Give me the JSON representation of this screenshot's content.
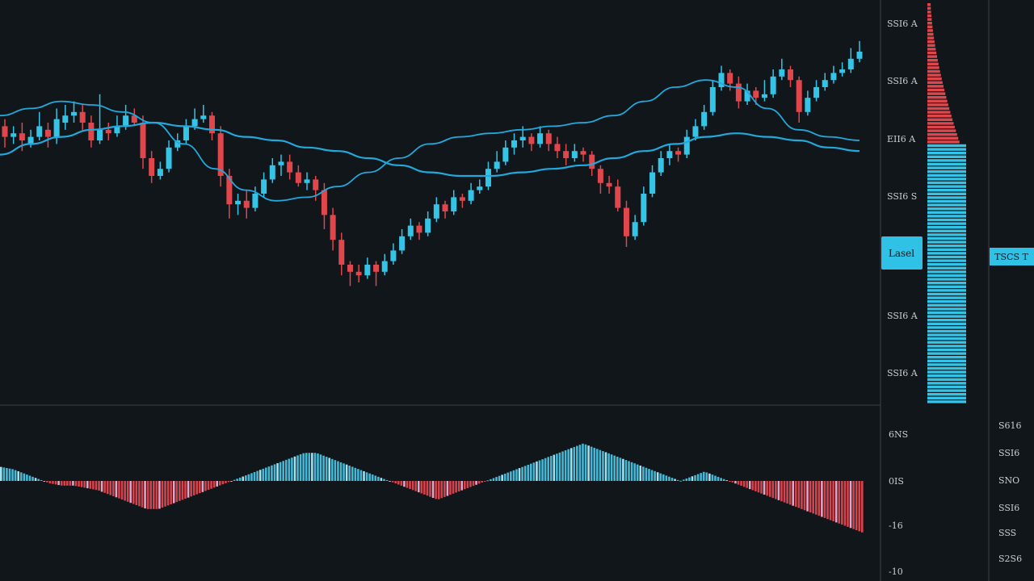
{
  "theme": {
    "background": "#11161b",
    "divider": "#3a4149",
    "bull_color": "#35c3e6",
    "bear_color": "#e0474c",
    "ma_color": "#23a8dc",
    "osc_pos_color": "#45b8d6",
    "osc_neg_color": "#d6434d",
    "osc_neg_light_color": "#e6a3c2",
    "label_color": "#c8ced4",
    "highlight_color": "#2fc1e6",
    "highlight_text_color": "#0b1a20"
  },
  "price_axis": {
    "labels": [
      "SSI6 A",
      "SSI6 A",
      "EII6 A",
      "SSI6 S",
      "SSI6 A",
      "SSI6 A"
    ],
    "current_price_label": "Lasel",
    "right_tag": "TSCS T"
  },
  "oscillator_axis": {
    "left_labels": [
      "6NS",
      "0IS",
      "-16",
      "-10"
    ],
    "right_labels": [
      "S616",
      "SSI6",
      "SNO",
      "SSI6",
      "SSS",
      "S2S6"
    ]
  },
  "chart_data": {
    "type": "candlestick",
    "ylim": [
      0,
      100
    ],
    "candles": [
      [
        69,
        66,
        71,
        63
      ],
      [
        66,
        67,
        69,
        64
      ],
      [
        67,
        65,
        70,
        62
      ],
      [
        64,
        66,
        68,
        63
      ],
      [
        66,
        69,
        73,
        65
      ],
      [
        68,
        66,
        70,
        63
      ],
      [
        66,
        71,
        74,
        64
      ],
      [
        70,
        72,
        75,
        68
      ],
      [
        72,
        73,
        76,
        70
      ],
      [
        73,
        70,
        75,
        68
      ],
      [
        70,
        65,
        72,
        63
      ],
      [
        65,
        68,
        78,
        64
      ],
      [
        68,
        67,
        70,
        65
      ],
      [
        67,
        69,
        72,
        66
      ],
      [
        69,
        72,
        75,
        68
      ],
      [
        72,
        70,
        74,
        69
      ],
      [
        70,
        60,
        72,
        57
      ],
      [
        60,
        55,
        62,
        53
      ],
      [
        55,
        57,
        59,
        54
      ],
      [
        57,
        63,
        65,
        56
      ],
      [
        63,
        65,
        67,
        62
      ],
      [
        65,
        69,
        71,
        64
      ],
      [
        69,
        71,
        74,
        68
      ],
      [
        71,
        72,
        75,
        70
      ],
      [
        72,
        67,
        73,
        65
      ],
      [
        67,
        55,
        69,
        52
      ],
      [
        55,
        47,
        57,
        43
      ],
      [
        47,
        48,
        50,
        44
      ],
      [
        48,
        46,
        51,
        43
      ],
      [
        46,
        50,
        52,
        45
      ],
      [
        50,
        54,
        56,
        49
      ],
      [
        54,
        58,
        60,
        53
      ],
      [
        58,
        59,
        61,
        55
      ],
      [
        59,
        56,
        61,
        54
      ],
      [
        56,
        53,
        58,
        52
      ],
      [
        53,
        54,
        56,
        51
      ],
      [
        54,
        51,
        55,
        48
      ],
      [
        51,
        44,
        53,
        40
      ],
      [
        44,
        37,
        46,
        34
      ],
      [
        37,
        30,
        39,
        27
      ],
      [
        30,
        28,
        31,
        24
      ],
      [
        28,
        27,
        30,
        25
      ],
      [
        27,
        30,
        32,
        26
      ],
      [
        30,
        28,
        31,
        24
      ],
      [
        28,
        31,
        33,
        27
      ],
      [
        31,
        34,
        36,
        30
      ],
      [
        34,
        38,
        40,
        33
      ],
      [
        38,
        41,
        43,
        37
      ],
      [
        41,
        39,
        42,
        37
      ],
      [
        39,
        43,
        45,
        38
      ],
      [
        43,
        47,
        49,
        42
      ],
      [
        47,
        45,
        48,
        43
      ],
      [
        45,
        49,
        51,
        44
      ],
      [
        49,
        48,
        50,
        46
      ],
      [
        48,
        51,
        53,
        47
      ],
      [
        51,
        52,
        54,
        50
      ],
      [
        52,
        57,
        59,
        51
      ],
      [
        57,
        59,
        62,
        56
      ],
      [
        59,
        63,
        65,
        58
      ],
      [
        63,
        65,
        67,
        61
      ],
      [
        65,
        66,
        69,
        63
      ],
      [
        66,
        64,
        67,
        62
      ],
      [
        64,
        67,
        69,
        63
      ],
      [
        67,
        64,
        68,
        62
      ],
      [
        64,
        62,
        66,
        60
      ],
      [
        62,
        60,
        64,
        58
      ],
      [
        60,
        62,
        64,
        59
      ],
      [
        62,
        61,
        63,
        59
      ],
      [
        61,
        57,
        62,
        55
      ],
      [
        57,
        53,
        58,
        50
      ],
      [
        53,
        52,
        55,
        50
      ],
      [
        52,
        46,
        54,
        45
      ],
      [
        46,
        38,
        48,
        35
      ],
      [
        38,
        42,
        44,
        37
      ],
      [
        42,
        50,
        52,
        41
      ],
      [
        50,
        56,
        58,
        49
      ],
      [
        56,
        60,
        62,
        55
      ],
      [
        60,
        62,
        64,
        58
      ],
      [
        62,
        61,
        63,
        59
      ],
      [
        61,
        66,
        68,
        60
      ],
      [
        66,
        69,
        71,
        65
      ],
      [
        69,
        73,
        75,
        68
      ],
      [
        73,
        80,
        82,
        72
      ],
      [
        80,
        84,
        86,
        79
      ],
      [
        84,
        81,
        85,
        79
      ],
      [
        81,
        76,
        83,
        74
      ],
      [
        76,
        79,
        81,
        75
      ],
      [
        79,
        77,
        80,
        75
      ],
      [
        77,
        78,
        82,
        76
      ],
      [
        78,
        83,
        85,
        77
      ],
      [
        83,
        85,
        88,
        82
      ],
      [
        85,
        82,
        86,
        80
      ],
      [
        82,
        73,
        83,
        70
      ],
      [
        73,
        77,
        79,
        72
      ],
      [
        77,
        80,
        82,
        76
      ],
      [
        80,
        82,
        84,
        79
      ],
      [
        82,
        84,
        86,
        81
      ],
      [
        84,
        85,
        87,
        83
      ],
      [
        85,
        88,
        91,
        84
      ],
      [
        88,
        90,
        93,
        87
      ]
    ],
    "ma_fast": [
      72,
      74,
      76,
      75,
      73,
      70,
      64,
      57,
      51,
      48,
      49,
      52,
      56,
      60,
      64,
      66,
      67,
      68,
      69,
      70,
      72,
      76,
      80,
      82,
      80,
      74,
      68,
      66,
      65
    ],
    "ma_slow": [
      61,
      64,
      66,
      68,
      69,
      70,
      69,
      68,
      66,
      65,
      63,
      62,
      60,
      58,
      56,
      55,
      55,
      56,
      57,
      58,
      60,
      62,
      64,
      66,
      67,
      66,
      65,
      63,
      62
    ],
    "oscillator": [
      3,
      2.5,
      1.5,
      0.5,
      -0.5,
      -1,
      -1,
      -1.5,
      -2,
      -3,
      -4,
      -5,
      -6,
      -6,
      -5,
      -4,
      -3,
      -2,
      -1,
      0,
      1,
      2,
      3,
      4,
      5,
      6,
      6,
      5,
      4,
      3,
      2,
      1,
      0,
      -1,
      -2,
      -3,
      -4,
      -3,
      -2,
      -1,
      0,
      1,
      2,
      3,
      4,
      5,
      6,
      7,
      8,
      7,
      6,
      5,
      4,
      3,
      2,
      1,
      0,
      1,
      2,
      1,
      0,
      -1,
      -2,
      -3,
      -4,
      -5,
      -6,
      -7,
      -8,
      -9,
      -10,
      -11
    ]
  }
}
